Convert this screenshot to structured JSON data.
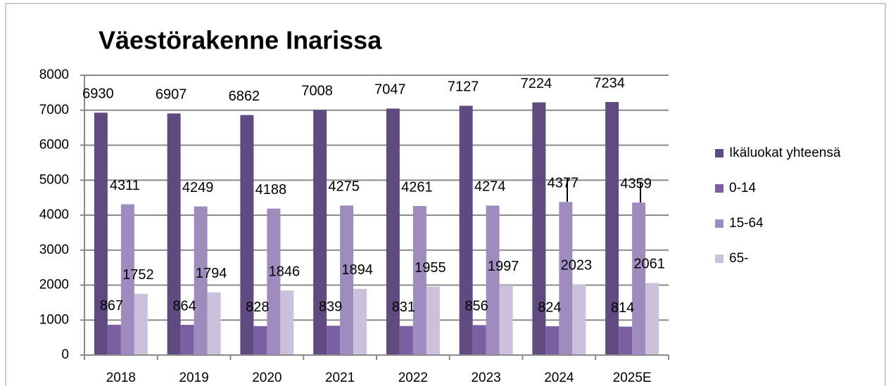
{
  "chart_data": {
    "type": "bar",
    "title": "Väestörakenne Inarissa",
    "categories": [
      "2018",
      "2019",
      "2020",
      "2021",
      "2022",
      "2023",
      "2024",
      "2025E"
    ],
    "series": [
      {
        "name": "Ikäluokat yhteensä",
        "color": "#5f4b80",
        "values": [
          6930,
          6907,
          6862,
          7008,
          7047,
          7127,
          7224,
          7234
        ]
      },
      {
        "name": "0-14",
        "color": "#7a5fa3",
        "values": [
          867,
          864,
          828,
          839,
          831,
          856,
          824,
          814
        ]
      },
      {
        "name": "15-64",
        "color": "#9e8cbf",
        "values": [
          4311,
          4249,
          4188,
          4275,
          4261,
          4274,
          4377,
          4359
        ]
      },
      {
        "name": "65-",
        "color": "#cbc1dc",
        "values": [
          1752,
          1794,
          1846,
          1894,
          1955,
          1997,
          2023,
          2061
        ]
      }
    ],
    "ylim": [
      0,
      8000
    ],
    "yticks": [
      0,
      1000,
      2000,
      3000,
      4000,
      5000,
      6000,
      7000,
      8000
    ],
    "grid": true,
    "legend": "right"
  }
}
